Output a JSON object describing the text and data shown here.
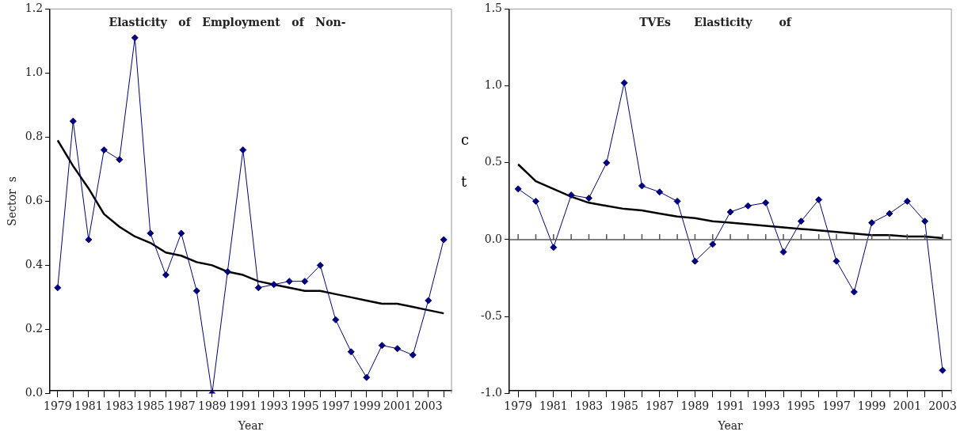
{
  "chart_data": [
    {
      "type": "line",
      "title": "Elasticity   of   Employment   of   Non-",
      "xlabel": "Year",
      "ylabel": "Sector  s",
      "categories": [
        "1979",
        null,
        "1981",
        null,
        "1983",
        null,
        "1985",
        null,
        "1987",
        null,
        "1989",
        null,
        "1991",
        null,
        "1993",
        null,
        "1995",
        null,
        "1997",
        null,
        "1999",
        null,
        "2001",
        null,
        "2003",
        null
      ],
      "series": [
        {
          "color": "#000080",
          "values": [
            0.33,
            0.85,
            0.48,
            0.76,
            0.73,
            1.11,
            0.5,
            0.37,
            0.5,
            0.32,
            0.0,
            0.38,
            0.76,
            0.33,
            0.34,
            0.35,
            0.35,
            0.4,
            0.23,
            0.13,
            0.05,
            0.15,
            0.14,
            0.12,
            0.29,
            0.48
          ]
        },
        {
          "color": "#000000",
          "marker": "none",
          "values": [
            0.79,
            0.71,
            0.64,
            0.56,
            0.52,
            0.49,
            0.47,
            0.44,
            0.43,
            0.41,
            0.4,
            0.38,
            0.37,
            0.35,
            0.34,
            0.33,
            0.32,
            0.32,
            0.31,
            0.3,
            0.29,
            0.28,
            0.28,
            0.27,
            0.26,
            0.25
          ]
        }
      ],
      "ylim": [
        0,
        1.2
      ],
      "yticks": [
        {
          "value": 0,
          "label": "0.0"
        },
        {
          "value": 0.2,
          "label": "0.2"
        },
        {
          "value": 0.4,
          "label": "0.4"
        },
        {
          "value": 0.6,
          "label": "0.6"
        },
        {
          "value": 0.8,
          "label": "0.8"
        },
        {
          "value": 1,
          "label": "1.0"
        },
        {
          "value": 1.2,
          "label": "1.2"
        }
      ],
      "marker": "diamond",
      "grid": false,
      "legend": false,
      "annotations": [
        "c",
        "t"
      ]
    },
    {
      "type": "line",
      "title": "TVEs      Elasticity       of",
      "xlabel": "Year",
      "categories": [
        "1979",
        null,
        "1981",
        null,
        "1983",
        null,
        "1985",
        null,
        "1987",
        null,
        "1989",
        null,
        "1991",
        null,
        "1993",
        null,
        "1995",
        null,
        "1997",
        null,
        "1999",
        null,
        "2001",
        null,
        "2003"
      ],
      "series": [
        {
          "color": "#000080",
          "values": [
            0.33,
            0.25,
            -0.05,
            0.29,
            0.27,
            0.5,
            1.02,
            0.35,
            0.31,
            0.25,
            -0.14,
            -0.03,
            0.18,
            0.22,
            0.24,
            -0.08,
            0.12,
            0.26,
            -0.14,
            -0.34,
            0.11,
            0.17,
            0.25,
            0.12,
            -0.85
          ]
        },
        {
          "color": "#000000",
          "marker": "none",
          "values": [
            0.49,
            0.38,
            0.33,
            0.28,
            0.24,
            0.22,
            0.2,
            0.19,
            0.17,
            0.15,
            0.14,
            0.12,
            0.11,
            0.1,
            0.09,
            0.08,
            0.07,
            0.06,
            0.05,
            0.04,
            0.03,
            0.03,
            0.02,
            0.02,
            0.01
          ]
        }
      ],
      "ylim": [
        -1,
        1.5
      ],
      "yticks": [
        {
          "value": -1,
          "label": "-1.0"
        },
        {
          "value": -0.5,
          "label": "-0.5"
        },
        {
          "value": 0,
          "label": "0.0"
        },
        {
          "value": 0.5,
          "label": "0.5"
        },
        {
          "value": 1,
          "label": "1.0"
        },
        {
          "value": 1.5,
          "label": "1.5"
        }
      ],
      "ref_lines": [
        {
          "axis": "y",
          "value": 0,
          "color": "#555555"
        }
      ],
      "marker": "diamond",
      "grid": false,
      "legend": false
    }
  ]
}
